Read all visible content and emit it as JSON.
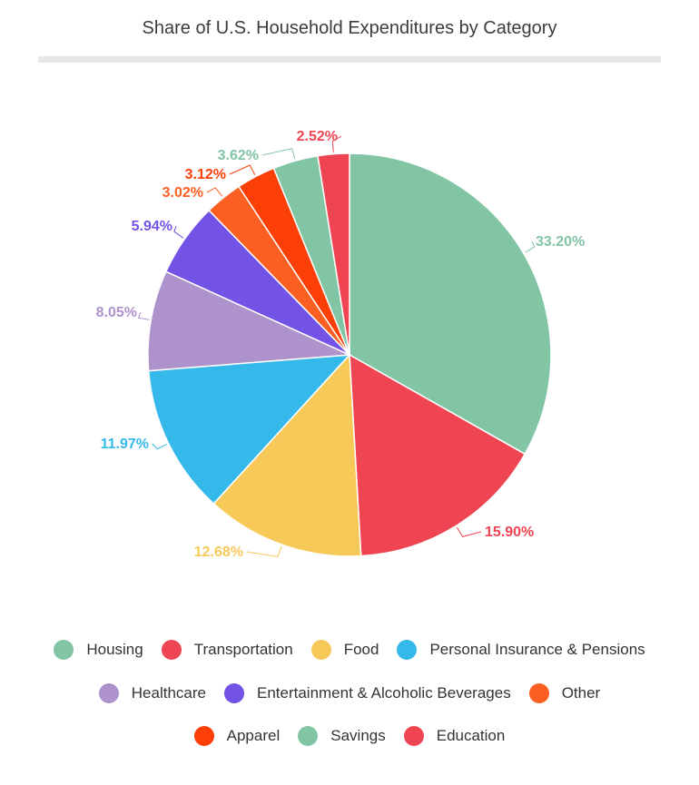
{
  "chart_data": {
    "type": "pie",
    "title": "Share of U.S. Household Expenditures by Category",
    "slices": [
      {
        "name": "Housing",
        "value": 33.2,
        "label": "33.20%",
        "color": "#82c5a5"
      },
      {
        "name": "Transportation",
        "value": 15.9,
        "label": "15.90%",
        "color": "#ef4452"
      },
      {
        "name": "Food",
        "value": 12.68,
        "label": "12.68%",
        "color": "#f7c959"
      },
      {
        "name": "Personal Insurance & Pensions",
        "value": 11.97,
        "label": "11.97%",
        "color": "#35b9ea"
      },
      {
        "name": "Healthcare",
        "value": 8.05,
        "label": "8.05%",
        "color": "#ae92cc"
      },
      {
        "name": "Entertainment & Alcoholic Beverages",
        "value": 5.94,
        "label": "5.94%",
        "color": "#7352e6"
      },
      {
        "name": "Other",
        "value": 3.02,
        "label": "3.02%",
        "color": "#fb5f22"
      },
      {
        "name": "Apparel",
        "value": 3.12,
        "label": "3.12%",
        "color": "#fb3f06"
      },
      {
        "name": "Savings",
        "value": 3.62,
        "label": "3.62%",
        "color": "#82c5a5"
      },
      {
        "name": "Education",
        "value": 2.52,
        "label": "2.52%",
        "color": "#ef4452"
      }
    ],
    "legend_position": "bottom"
  }
}
